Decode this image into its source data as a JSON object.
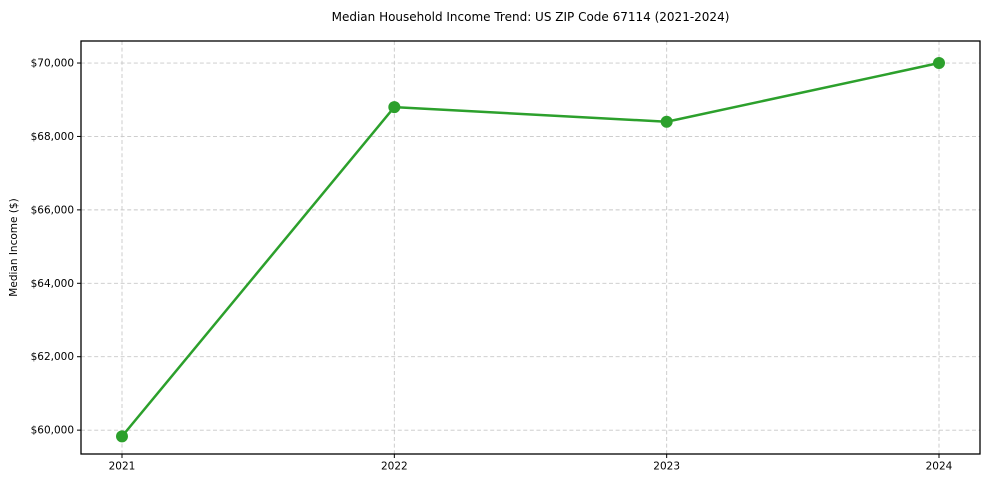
{
  "figure": {
    "background": "#ffffff"
  },
  "chart_data": {
    "type": "line",
    "title": "Median Household Income Trend: US ZIP Code 67114 (2021-2024)",
    "xlabel": "",
    "ylabel": "Median Income ($)",
    "categories": [
      "2021",
      "2022",
      "2023",
      "2024"
    ],
    "series": [
      {
        "name": "Median Household Income",
        "values": [
          59830,
          68800,
          68400,
          70000
        ]
      }
    ],
    "y_ticks": {
      "values": [
        60000,
        62000,
        64000,
        66000,
        68000,
        70000
      ],
      "labels": [
        "$60,000",
        "$62,000",
        "$64,000",
        "$66,000",
        "$68,000",
        "$70,000"
      ]
    },
    "ylim": [
      59350,
      70600
    ],
    "grid": "dashed-both-axes",
    "legend": "none",
    "marker": "circle",
    "colors": {
      "line": "#2ca02c",
      "marker": "#2ca02c",
      "grid": "#c8c8c8",
      "spine": "#000000",
      "text": "#000000",
      "background": "#ffffff"
    }
  }
}
